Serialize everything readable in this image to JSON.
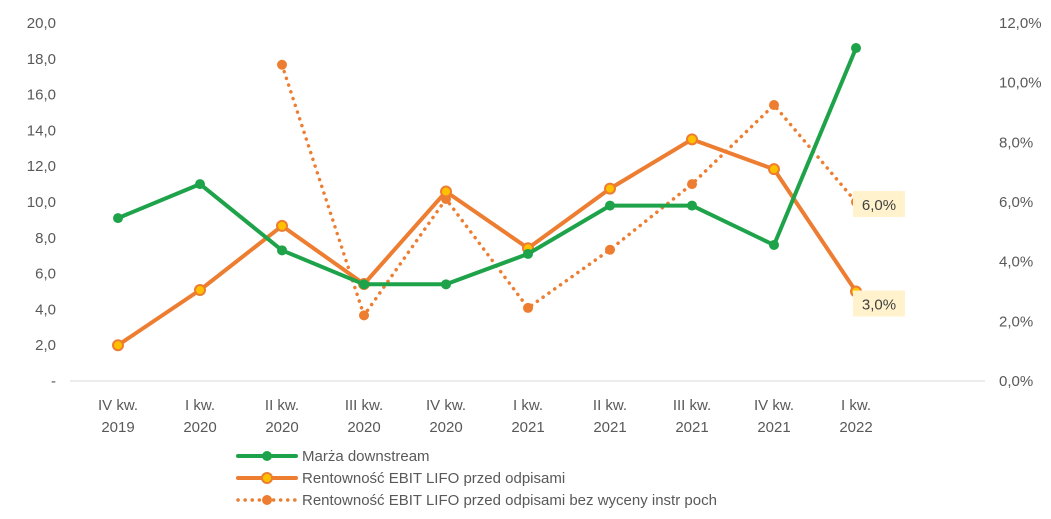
{
  "chart_data": {
    "type": "line",
    "categories": [
      [
        "IV kw.",
        "2019"
      ],
      [
        "I kw.",
        "2020"
      ],
      [
        "II kw.",
        "2020"
      ],
      [
        "III kw.",
        "2020"
      ],
      [
        "IV kw.",
        "2020"
      ],
      [
        "I kw.",
        "2021"
      ],
      [
        "II kw.",
        "2021"
      ],
      [
        "III kw.",
        "2021"
      ],
      [
        "IV kw.",
        "2021"
      ],
      [
        "I kw.",
        "2022"
      ]
    ],
    "y_left": {
      "ticks": [
        "-",
        "2,0",
        "4,0",
        "6,0",
        "8,0",
        "10,0",
        "12,0",
        "14,0",
        "16,0",
        "18,0",
        "20,0"
      ],
      "ylim": [
        0,
        20
      ]
    },
    "y_right": {
      "ticks": [
        "0,0%",
        "2,0%",
        "4,0%",
        "6,0%",
        "8,0%",
        "10,0%",
        "12,0%"
      ],
      "ylim": [
        0,
        12
      ]
    },
    "series": [
      {
        "name": "Marża downstream",
        "axis": "left",
        "color": "#1fa34a",
        "style": "solid",
        "values": [
          9.1,
          11.0,
          7.3,
          5.4,
          5.4,
          7.1,
          9.8,
          9.8,
          7.6,
          18.6
        ]
      },
      {
        "name": "Rentowność EBIT LIFO przed odpisami",
        "axis": "right",
        "color": "#ed7d31",
        "marker_fill": "#ffc000",
        "style": "solid",
        "values": [
          1.2,
          3.05,
          5.2,
          3.25,
          6.35,
          4.45,
          6.45,
          8.1,
          7.1,
          3.0
        ],
        "last_label": "3,0%"
      },
      {
        "name": "Rentowność EBIT LIFO przed odpisami bez wyceny instr poch",
        "axis": "right",
        "color": "#ed7d31",
        "style": "dotted",
        "values": [
          null,
          null,
          10.6,
          2.2,
          6.1,
          2.45,
          4.4,
          6.6,
          9.25,
          6.0
        ],
        "last_label": "6,0%"
      }
    ],
    "legend": [
      "Marża downstream",
      "Rentowność EBIT LIFO przed odpisami",
      "Rentowność EBIT LIFO przed odpisami bez wyceny instr poch"
    ],
    "legend_position": "bottom",
    "grid": false
  }
}
